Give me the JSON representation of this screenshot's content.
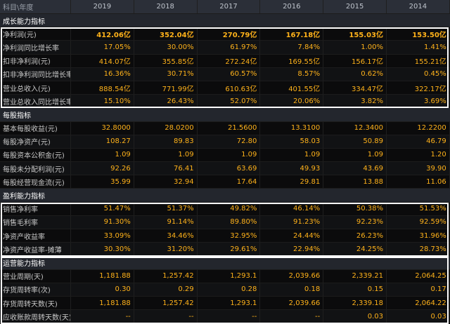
{
  "header": {
    "label": "科目\\年度",
    "years": [
      "2019",
      "2018",
      "2017",
      "2016",
      "2015",
      "2014"
    ]
  },
  "sections": [
    {
      "title": "成长能力指标",
      "rows": [
        {
          "label": "净利润(元)",
          "values": [
            "412.06亿",
            "352.04亿",
            "270.79亿",
            "167.18亿",
            "155.03亿",
            "153.50亿"
          ]
        },
        {
          "label": "净利润同比增长率",
          "values": [
            "17.05%",
            "30.00%",
            "61.97%",
            "7.84%",
            "1.00%",
            "1.41%"
          ]
        },
        {
          "label": "扣非净利润(元)",
          "values": [
            "414.07亿",
            "355.85亿",
            "272.24亿",
            "169.55亿",
            "156.17亿",
            "155.21亿"
          ]
        },
        {
          "label": "扣非净利润同比增长率",
          "values": [
            "16.36%",
            "30.71%",
            "60.57%",
            "8.57%",
            "0.62%",
            "0.45%"
          ]
        },
        {
          "label": "营业总收入(元)",
          "values": [
            "888.54亿",
            "771.99亿",
            "610.63亿",
            "401.55亿",
            "334.47亿",
            "322.17亿"
          ]
        },
        {
          "label": "营业总收入同比增长率",
          "values": [
            "15.10%",
            "26.43%",
            "52.07%",
            "20.06%",
            "3.82%",
            "3.69%"
          ]
        }
      ]
    },
    {
      "title": "每股指标",
      "rows": [
        {
          "label": "基本每股收益(元)",
          "values": [
            "32.8000",
            "28.0200",
            "21.5600",
            "13.3100",
            "12.3400",
            "12.2200"
          ]
        },
        {
          "label": "每股净资产(元)",
          "values": [
            "108.27",
            "89.83",
            "72.80",
            "58.03",
            "50.89",
            "46.79"
          ]
        },
        {
          "label": "每股资本公积金(元)",
          "values": [
            "1.09",
            "1.09",
            "1.09",
            "1.09",
            "1.09",
            "1.20"
          ]
        },
        {
          "label": "每股未分配利润(元)",
          "values": [
            "92.26",
            "76.41",
            "63.69",
            "49.93",
            "43.69",
            "39.90"
          ]
        },
        {
          "label": "每股经营现金流(元)",
          "values": [
            "35.99",
            "32.94",
            "17.64",
            "29.81",
            "13.88",
            "11.06"
          ]
        }
      ]
    },
    {
      "title": "盈利能力指标",
      "rows": [
        {
          "label": "销售净利率",
          "values": [
            "51.47%",
            "51.37%",
            "49.82%",
            "46.14%",
            "50.38%",
            "51.53%"
          ]
        },
        {
          "label": "销售毛利率",
          "values": [
            "91.30%",
            "91.14%",
            "89.80%",
            "91.23%",
            "92.23%",
            "92.59%"
          ]
        },
        {
          "label": "净资产收益率",
          "values": [
            "33.09%",
            "34.46%",
            "32.95%",
            "24.44%",
            "26.23%",
            "31.96%"
          ]
        },
        {
          "label": "净资产收益率-摊薄",
          "values": [
            "30.30%",
            "31.20%",
            "29.61%",
            "22.94%",
            "24.25%",
            "28.73%"
          ]
        }
      ]
    },
    {
      "title": "运营能力指标",
      "rows": [
        {
          "label": "营业周期(天)",
          "values": [
            "1,181.88",
            "1,257.42",
            "1,293.1",
            "2,039.66",
            "2,339.21",
            "2,064.25"
          ]
        },
        {
          "label": "存货周转率(次)",
          "values": [
            "0.30",
            "0.29",
            "0.28",
            "0.18",
            "0.15",
            "0.17"
          ]
        },
        {
          "label": "存货周转天数(天)",
          "values": [
            "1,181.88",
            "1,257.42",
            "1,293.1",
            "2,039.66",
            "2,339.18",
            "2,064.22"
          ]
        },
        {
          "label": "应收账款周转天数(天)",
          "values": [
            "--",
            "--",
            "--",
            "--",
            "0.03",
            "0.03"
          ]
        }
      ]
    }
  ]
}
